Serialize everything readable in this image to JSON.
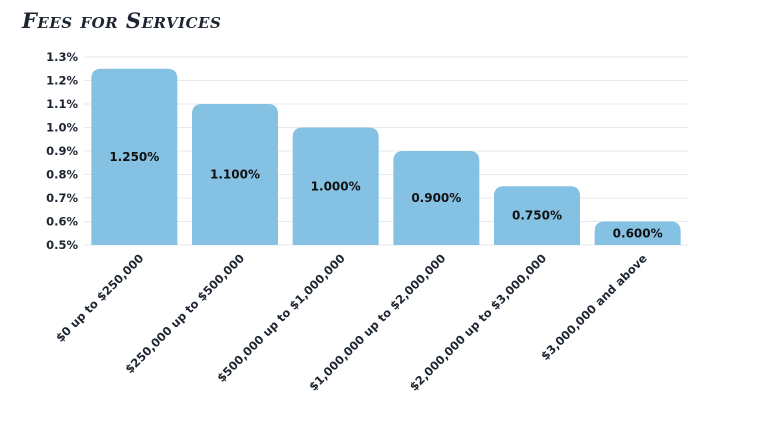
{
  "chart_data": {
    "type": "bar",
    "title": "Fees for Services",
    "xlabel": "",
    "ylabel": "",
    "categories": [
      "$0 up to $250,000",
      "$250,000 up to $500,000",
      "$500,000 up to $1,000,000",
      "$1,000,000 up to $2,000,000",
      "$2,000,000 up to $3,000,000",
      "$3,000,000 and above"
    ],
    "values": [
      1.25,
      1.1,
      1.0,
      0.9,
      0.75,
      0.6
    ],
    "data_labels": [
      "1.250%",
      "1.100%",
      "1.000%",
      "0.900%",
      "0.750%",
      "0.600%"
    ],
    "ylim": [
      0.5,
      1.3
    ],
    "yticks": [
      "0.5%",
      "0.6%",
      "0.7%",
      "0.8%",
      "0.9%",
      "1.0%",
      "1.1%",
      "1.2%",
      "1.3%"
    ],
    "ytick_values": [
      0.5,
      0.6,
      0.7,
      0.8,
      0.9,
      1.0,
      1.1,
      1.2,
      1.3
    ],
    "grid": true,
    "bar_color": "#85c1e3"
  }
}
